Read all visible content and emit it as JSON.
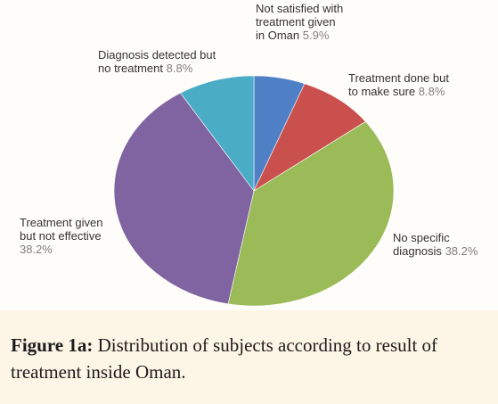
{
  "chart_data": {
    "type": "pie",
    "categories": [
      "Not satisfied with treatment given in Oman",
      "Treatment done but to make sure",
      "No specific diagnosis",
      "Treatment given but not effective",
      "Diagnosis detected but no treatment"
    ],
    "values": [
      5.9,
      8.8,
      38.2,
      38.2,
      8.8
    ],
    "value_labels": [
      "5.9%",
      "8.8%",
      "38.2%",
      "38.2%",
      "8.8%"
    ],
    "colors": [
      "#4f7fc5",
      "#c9504c",
      "#9bbb59",
      "#8064a2",
      "#4bacc6"
    ],
    "figure_label": "Figure 1a:",
    "caption": "Distribution of subjects according to result of treatment inside Oman."
  }
}
